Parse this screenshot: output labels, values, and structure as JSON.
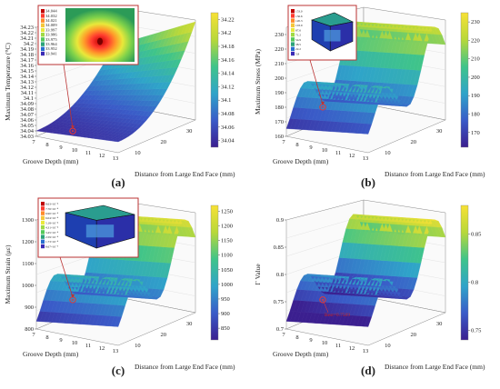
{
  "chart_data": [
    {
      "panel": "(a)",
      "type": "surface",
      "xlabel": "Groove Depth (mm)",
      "ylabel": "Distance from Large End Face (mm)",
      "zlabel": "Maximum Temperature (°C)",
      "x_ticks": [
        "7",
        "8",
        "9",
        "10",
        "11",
        "12",
        "13"
      ],
      "y_ticks": [
        "10",
        "20",
        "30"
      ],
      "z_ticks": [
        "34.03",
        "34.04",
        "34.05",
        "34.06",
        "34.07",
        "34.08",
        "34.09",
        "34.1",
        "34.11",
        "34.12",
        "34.13",
        "34.14",
        "34.15",
        "34.16",
        "34.17",
        "34.18",
        "34.19",
        "34.2",
        "34.21",
        "34.22",
        "34.23"
      ],
      "zlim": [
        34.03,
        34.23
      ],
      "colorbar_ticks": [
        "34.22",
        "34.2",
        "34.18",
        "34.16",
        "34.14",
        "34.12",
        "34.1",
        "34.08",
        "34.06",
        "34.04"
      ],
      "colorbar_range": [
        34.03,
        34.23
      ],
      "marker_color": "#e53935",
      "inset_legend": [
        "34.044",
        "34.032",
        "34.021",
        "34.009",
        "33.997",
        "33.986",
        "33.975",
        "33.964",
        "33.952",
        "33.941"
      ],
      "shape": "bowl"
    },
    {
      "panel": "(b)",
      "type": "surface",
      "xlabel": "Groove Depth (mm)",
      "ylabel": "Distance from Large End Face (mm)",
      "zlabel": "Maximum Stress (MPa)",
      "x_ticks": [
        "7",
        "8",
        "9",
        "10",
        "11",
        "12",
        "13"
      ],
      "y_ticks": [
        "10",
        "20",
        "30"
      ],
      "z_ticks": [
        "160",
        "170",
        "180",
        "190",
        "200",
        "210",
        "220",
        "230"
      ],
      "zlim": [
        160,
        235
      ],
      "colorbar_ticks": [
        "230",
        "220",
        "210",
        "200",
        "190",
        "180",
        "170"
      ],
      "colorbar_range": [
        162,
        235
      ],
      "marker_color": "#e53935",
      "inset_legend": [
        "153.0",
        "136.6",
        "120.3",
        "103.9",
        "87.6",
        "71.2",
        "54.9",
        "38.5",
        "22.2",
        "5.8"
      ],
      "shape": "ridges"
    },
    {
      "panel": "(c)",
      "type": "surface",
      "xlabel": "Groove Depth (mm)",
      "ylabel": "Distance from Large End Face (mm)",
      "zlabel": "Maximum Strain (με)",
      "x_ticks": [
        "7",
        "8",
        "9",
        "10",
        "11",
        "12",
        "13"
      ],
      "y_ticks": [
        "10",
        "20",
        "30"
      ],
      "z_ticks": [
        "800",
        "900",
        "1000",
        "1100",
        "1200",
        "1300"
      ],
      "zlim": [
        800,
        1300
      ],
      "colorbar_ticks": [
        "1250",
        "1200",
        "1150",
        "1100",
        "1050",
        "1000",
        "950",
        "900",
        "850"
      ],
      "colorbar_range": [
        810,
        1270
      ],
      "marker_color": "#e53935",
      "inset_legend": [
        "8.63×10⁻⁴",
        "7.76×10⁻⁴",
        "6.90×10⁻⁴",
        "6.04×10⁻⁴",
        "5.18×10⁻⁴",
        "4.31×10⁻⁴",
        "3.45×10⁻⁴",
        "2.59×10⁻⁴",
        "1.73×10⁻⁴",
        "8.67×10⁻⁵"
      ],
      "shape": "ridges"
    },
    {
      "panel": "(d)",
      "type": "surface",
      "xlabel": "Groove Depth (mm)",
      "ylabel": "Distance from Large End Face (mm)",
      "zlabel": "Γ Value",
      "x_ticks": [
        "7",
        "8",
        "9",
        "10",
        "11",
        "12",
        "13"
      ],
      "y_ticks": [
        "10",
        "20",
        "30"
      ],
      "z_ticks": [
        "0.7",
        "0.75",
        "0.8",
        "0.85",
        "0.9"
      ],
      "zlim": [
        0.7,
        0.9
      ],
      "colorbar_ticks": [
        "0.85",
        "0.8",
        "0.75"
      ],
      "colorbar_range": [
        0.74,
        0.88
      ],
      "marker_color": "#e53935",
      "annotation": "Best=0.7509",
      "shape": "ridges"
    }
  ]
}
